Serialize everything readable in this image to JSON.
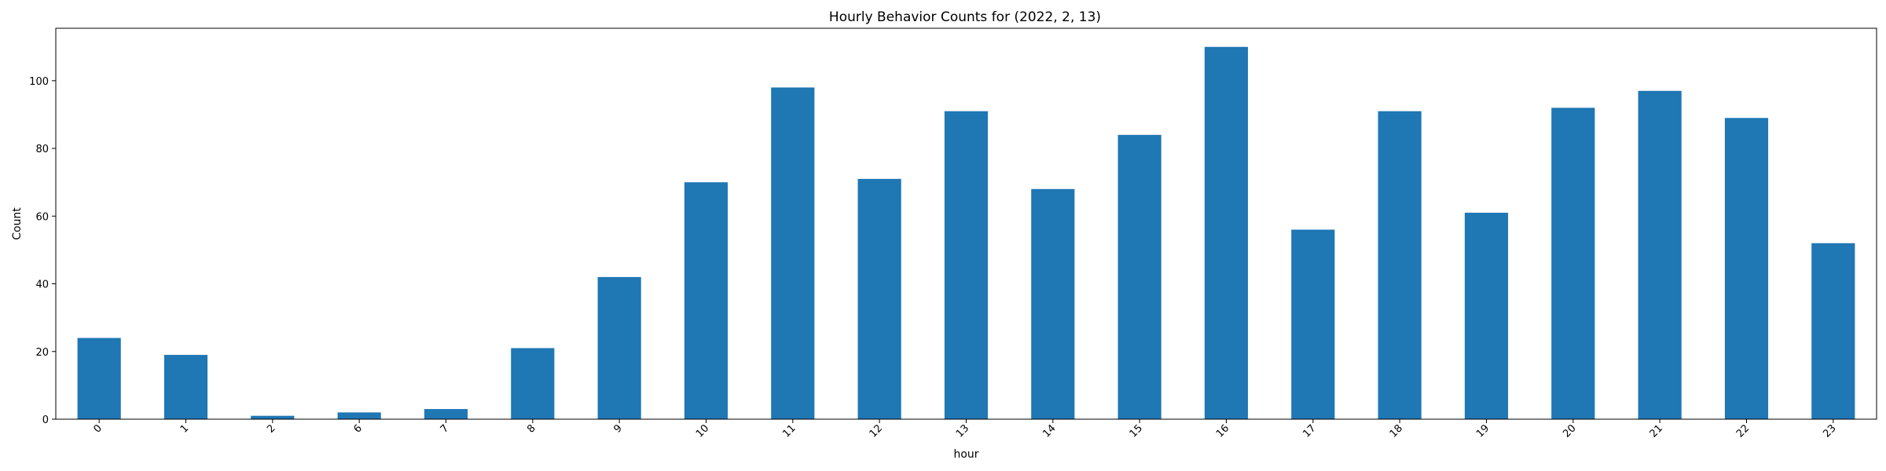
{
  "chart_data": {
    "type": "bar",
    "title": "Hourly Behavior Counts for (2022, 2, 13)",
    "xlabel": "hour",
    "ylabel": "Count",
    "categories": [
      "0",
      "1",
      "2",
      "6",
      "7",
      "8",
      "9",
      "10",
      "11",
      "12",
      "13",
      "14",
      "15",
      "16",
      "17",
      "18",
      "19",
      "20",
      "21",
      "22",
      "23"
    ],
    "values": [
      24,
      19,
      1,
      2,
      3,
      21,
      42,
      70,
      98,
      71,
      91,
      68,
      84,
      110,
      56,
      91,
      61,
      92,
      97,
      89,
      52
    ],
    "ylim": [
      0,
      115.5
    ],
    "yticks": [
      0,
      20,
      40,
      60,
      80,
      100
    ],
    "grid": false,
    "legend": "none",
    "bar_color": "#1f77b4"
  }
}
